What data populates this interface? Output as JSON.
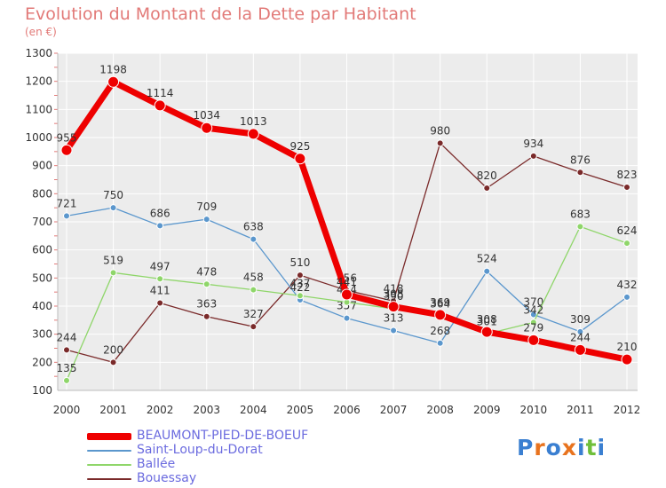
{
  "title": "Evolution du Montant de la Dette par Habitant",
  "subtitle": "(en €)",
  "logo_text": "Proxiti",
  "colors": {
    "background": "#ffffff",
    "plot_background": "#ececec",
    "title": "#e27a78",
    "legend_text": "#6b6bdf",
    "gridline": "#ffffff"
  },
  "chart_data": {
    "type": "line",
    "x": [
      2000,
      2001,
      2002,
      2003,
      2004,
      2005,
      2006,
      2007,
      2008,
      2009,
      2010,
      2011,
      2012
    ],
    "ylim": [
      100,
      1300
    ],
    "yticks": [
      100,
      200,
      300,
      400,
      500,
      600,
      700,
      800,
      900,
      1000,
      1100,
      1200,
      1300
    ],
    "grid": true,
    "legend_position": "bottom-left",
    "series": [
      {
        "name": "Bouessay",
        "color": "#7a2a2a",
        "line_width": 1.3,
        "marker_radius": 3.5,
        "values": [
          244,
          200,
          411,
          363,
          327,
          510,
          456,
          418,
          980,
          820,
          934,
          876,
          823
        ],
        "labels": [
          "244",
          "200",
          "411",
          "363",
          "327",
          "510",
          "456",
          "418",
          "980",
          "820",
          "934",
          "876",
          "823"
        ]
      },
      {
        "name": "Saint-Loup-du-Dorat",
        "color": "#5b97cd",
        "line_width": 1.3,
        "marker_radius": 3.5,
        "values": [
          721,
          750,
          686,
          709,
          638,
          422,
          357,
          313,
          268,
          524,
          370,
          309,
          432
        ],
        "labels": [
          "721",
          "750",
          "686",
          "709",
          "638",
          "422",
          "357",
          "313",
          "268",
          "524",
          "370",
          "309",
          "432"
        ]
      },
      {
        "name": "Ballée",
        "color": "#8fd66a",
        "line_width": 1.3,
        "marker_radius": 3.5,
        "values": [
          135,
          519,
          497,
          478,
          458,
          437,
          414,
          390,
          364,
          301,
          342,
          683,
          624
        ],
        "labels": [
          "135",
          "519",
          "497",
          "478",
          "458",
          "437",
          "414",
          "390",
          "364",
          "301",
          "342",
          "683",
          "624"
        ]
      },
      {
        "name": "BEAUMONT-PIED-DE-BOEUF",
        "color": "#ee0000",
        "line_width": 7,
        "marker_radius": 6,
        "values": [
          955,
          1198,
          1114,
          1034,
          1013,
          925,
          441,
          398,
          369,
          308,
          279,
          244,
          210
        ],
        "labels": [
          "955",
          "1198",
          "1114",
          "1034",
          "1013",
          "925",
          "441",
          "398",
          "369",
          "308",
          "279",
          "244",
          "210"
        ]
      }
    ],
    "legend": [
      {
        "name": "BEAUMONT-PIED-DE-BOEUF",
        "color": "#ee0000",
        "thickness": 8
      },
      {
        "name": "Saint-Loup-du-Dorat",
        "color": "#5b97cd",
        "thickness": 2
      },
      {
        "name": "Ballée",
        "color": "#8fd66a",
        "thickness": 2
      },
      {
        "name": "Bouessay",
        "color": "#7a2a2a",
        "thickness": 2
      }
    ]
  }
}
